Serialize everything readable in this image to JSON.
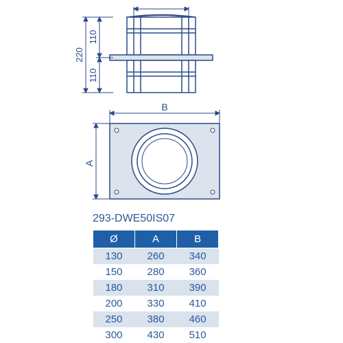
{
  "product_code": "293-DWE50IS07",
  "colors": {
    "line": "#2a4a8a",
    "fill_panel": "#dde3ec",
    "header_bg": "#1f5fa8",
    "header_text": "#ffffff",
    "row_alt_bg": "#d9e2ed",
    "row_bg": "#ffffff",
    "cell_text": "#2a5a9a",
    "code_text": "#2a5a9a"
  },
  "diagram": {
    "dims": {
      "diameter_label": "Ø",
      "height_total": "220",
      "height_upper": "110",
      "height_lower": "110",
      "width_label_B": "B",
      "height_label_A": "A"
    }
  },
  "table": {
    "headers": [
      "Ø",
      "A",
      "B"
    ],
    "rows": [
      [
        "130",
        "260",
        "340"
      ],
      [
        "150",
        "280",
        "360"
      ],
      [
        "180",
        "310",
        "390"
      ],
      [
        "200",
        "330",
        "410"
      ],
      [
        "250",
        "380",
        "460"
      ],
      [
        "300",
        "430",
        "510"
      ]
    ]
  }
}
